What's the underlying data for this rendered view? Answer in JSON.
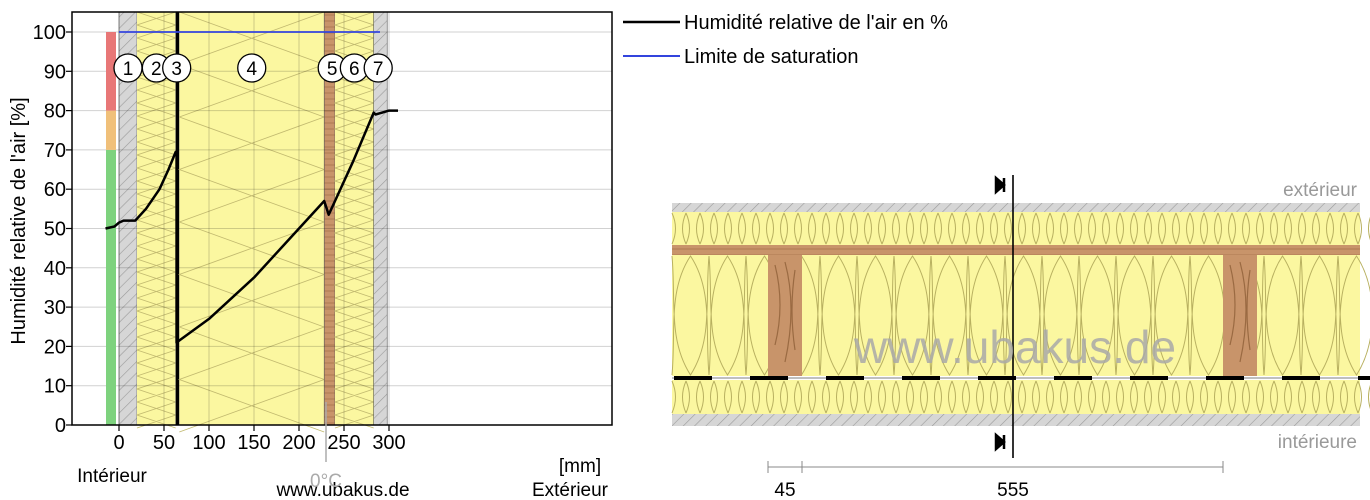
{
  "chart_data": {
    "type": "line",
    "ylabel": "Humidité relative de l'air [%]",
    "xunit": "[mm]",
    "xlim": [
      -30,
      320
    ],
    "ylim": [
      0,
      105
    ],
    "x_ticks": [
      0,
      50,
      100,
      150,
      200,
      250,
      300
    ],
    "y_ticks": [
      0,
      10,
      20,
      30,
      40,
      50,
      60,
      70,
      80,
      90,
      100
    ],
    "grid": true,
    "legend_position": "top-right",
    "side_left": "Intérieur",
    "side_right": "Extérieur",
    "watermark": "www.ubakus.de",
    "zero_degree": {
      "label": "0°C",
      "x": 230
    },
    "comfort_band": [
      {
        "from": 0,
        "to": 70,
        "color": "#7ed27e"
      },
      {
        "from": 70,
        "to": 80,
        "color": "#f0c07a"
      },
      {
        "from": 80,
        "to": 100,
        "color": "#e87777"
      }
    ],
    "layers": [
      {
        "id": "1",
        "from": 0,
        "to": 20,
        "material": "plaster",
        "color": "#d6d6d6"
      },
      {
        "id": "2",
        "from": 20,
        "to": 63,
        "material": "insulation",
        "color": "#fbf7a0"
      },
      {
        "id": "3",
        "from": 63,
        "to": 67,
        "material": "membrane",
        "color": "#000000"
      },
      {
        "id": "4",
        "from": 67,
        "to": 228,
        "material": "insulation",
        "color": "#fbf7a0"
      },
      {
        "id": "5",
        "from": 228,
        "to": 240,
        "material": "wood",
        "color": "#c8946a"
      },
      {
        "id": "6",
        "from": 240,
        "to": 283,
        "material": "insulation",
        "color": "#fbf7a0"
      },
      {
        "id": "7",
        "from": 283,
        "to": 298,
        "material": "plaster",
        "color": "#d6d6d6"
      }
    ],
    "series": [
      {
        "name": "Humidité relative de l'air en %",
        "color": "#000000",
        "x": [
          -15,
          -5,
          0,
          5,
          18,
          30,
          45,
          55,
          63,
          64,
          64,
          67,
          100,
          150,
          200,
          228,
          233,
          240,
          260,
          283,
          285,
          300,
          310
        ],
        "y": [
          50,
          50.5,
          51.5,
          52,
          52,
          55,
          60,
          65,
          69.5,
          68.5,
          21,
          21.5,
          27,
          37.5,
          50,
          57,
          53.5,
          57,
          67,
          79.5,
          79,
          80,
          80
        ]
      },
      {
        "name": "Limite de saturation",
        "color": "#3344dd",
        "x": [
          0,
          290
        ],
        "y": [
          100,
          100
        ]
      }
    ]
  },
  "section": {
    "label_top": "extérieur",
    "label_bottom": "intérieure",
    "watermark": "www.ubakus.de",
    "dim_labels": [
      "45",
      "555"
    ]
  }
}
